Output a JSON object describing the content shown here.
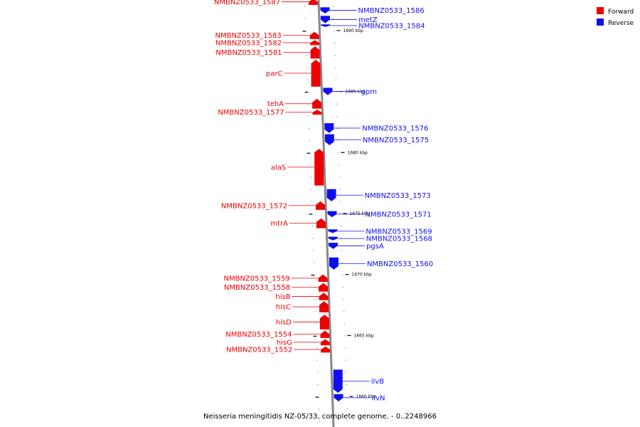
{
  "caption": "Neisseria meningitidis NZ-05/33, complete genome. - 0..2248966",
  "legend": [
    {
      "label": "Forward",
      "color": "#ee0000"
    },
    {
      "label": "Reverse",
      "color": "#1010ee"
    }
  ],
  "colors": {
    "forward": "#ee0000",
    "reverse": "#1010ee",
    "backbone": "#888888",
    "tick": "#000000"
  },
  "scale": {
    "kbp_top": 1692.5,
    "kbp_bottom": 1657.5
  },
  "ticks": [
    "1690 kbp",
    "1685 kbp",
    "1680 kbp",
    "1675 kbp",
    "1670 kbp",
    "1665 kbp",
    "1660 kbp"
  ],
  "genes": [
    {
      "name": "NMBNZ0533_1587",
      "strand": "forward",
      "start": 1692.6,
      "end": 1692.1
    },
    {
      "name": "NMBNZ0533_1586",
      "strand": "reverse",
      "start": 1691.9,
      "end": 1691.4
    },
    {
      "name": "metZ",
      "strand": "reverse",
      "start": 1691.2,
      "end": 1690.6
    },
    {
      "name": "NMBNZ0533_1584",
      "strand": "reverse",
      "start": 1690.5,
      "end": 1690.3
    },
    {
      "name": "NMBNZ0533_1583",
      "strand": "forward",
      "start": 1689.9,
      "end": 1689.3
    },
    {
      "name": "NMBNZ0533_1582",
      "strand": "forward",
      "start": 1689.2,
      "end": 1688.8
    },
    {
      "name": "NMBNZ0533_1581",
      "strand": "forward",
      "start": 1688.7,
      "end": 1687.7
    },
    {
      "name": "parC",
      "strand": "forward",
      "start": 1687.6,
      "end": 1685.4
    },
    {
      "name": "gpm",
      "strand": "reverse",
      "start": 1685.3,
      "end": 1684.7
    },
    {
      "name": "tehA",
      "strand": "forward",
      "start": 1684.4,
      "end": 1683.6
    },
    {
      "name": "NMBNZ0533_1577",
      "strand": "forward",
      "start": 1683.5,
      "end": 1683.1
    },
    {
      "name": "NMBNZ0533_1576",
      "strand": "reverse",
      "start": 1682.4,
      "end": 1681.6
    },
    {
      "name": "NMBNZ0533_1575",
      "strand": "reverse",
      "start": 1681.5,
      "end": 1680.6
    },
    {
      "name": "alaS",
      "strand": "forward",
      "start": 1680.3,
      "end": 1677.3
    },
    {
      "name": "NMBNZ0533_1573",
      "strand": "reverse",
      "start": 1677.0,
      "end": 1676.0
    },
    {
      "name": "NMBNZ0533_1572",
      "strand": "forward",
      "start": 1676.0,
      "end": 1675.3
    },
    {
      "name": "NMBNZ0533_1571",
      "strand": "reverse",
      "start": 1675.2,
      "end": 1674.7
    },
    {
      "name": "mtrA",
      "strand": "forward",
      "start": 1674.6,
      "end": 1673.8
    },
    {
      "name": "NMBNZ0533_1569",
      "strand": "reverse",
      "start": 1673.7,
      "end": 1673.4
    },
    {
      "name": "NMBNZ0533_1568",
      "strand": "reverse",
      "start": 1673.1,
      "end": 1672.8
    },
    {
      "name": "pgsA",
      "strand": "reverse",
      "start": 1672.6,
      "end": 1672.1
    },
    {
      "name": "NMBNZ0533_1560",
      "strand": "reverse",
      "start": 1671.4,
      "end": 1670.4
    },
    {
      "name": "NMBNZ0533_1559",
      "strand": "forward",
      "start": 1670.0,
      "end": 1669.4
    },
    {
      "name": "NMBNZ0533_1558",
      "strand": "forward",
      "start": 1669.3,
      "end": 1668.6
    },
    {
      "name": "hisB",
      "strand": "forward",
      "start": 1668.5,
      "end": 1667.9
    },
    {
      "name": "hisC",
      "strand": "forward",
      "start": 1667.8,
      "end": 1666.9
    },
    {
      "name": "hisD",
      "strand": "forward",
      "start": 1666.7,
      "end": 1665.5
    },
    {
      "name": "NMBNZ0533_1554",
      "strand": "forward",
      "start": 1665.4,
      "end": 1664.8
    },
    {
      "name": "hisG",
      "strand": "forward",
      "start": 1664.7,
      "end": 1664.2
    },
    {
      "name": "NMBNZ0533_1552",
      "strand": "forward",
      "start": 1664.1,
      "end": 1663.6
    },
    {
      "name": "ilvB",
      "strand": "reverse",
      "start": 1662.2,
      "end": 1660.3
    },
    {
      "name": "ilvN",
      "strand": "reverse",
      "start": 1660.2,
      "end": 1659.6
    }
  ]
}
